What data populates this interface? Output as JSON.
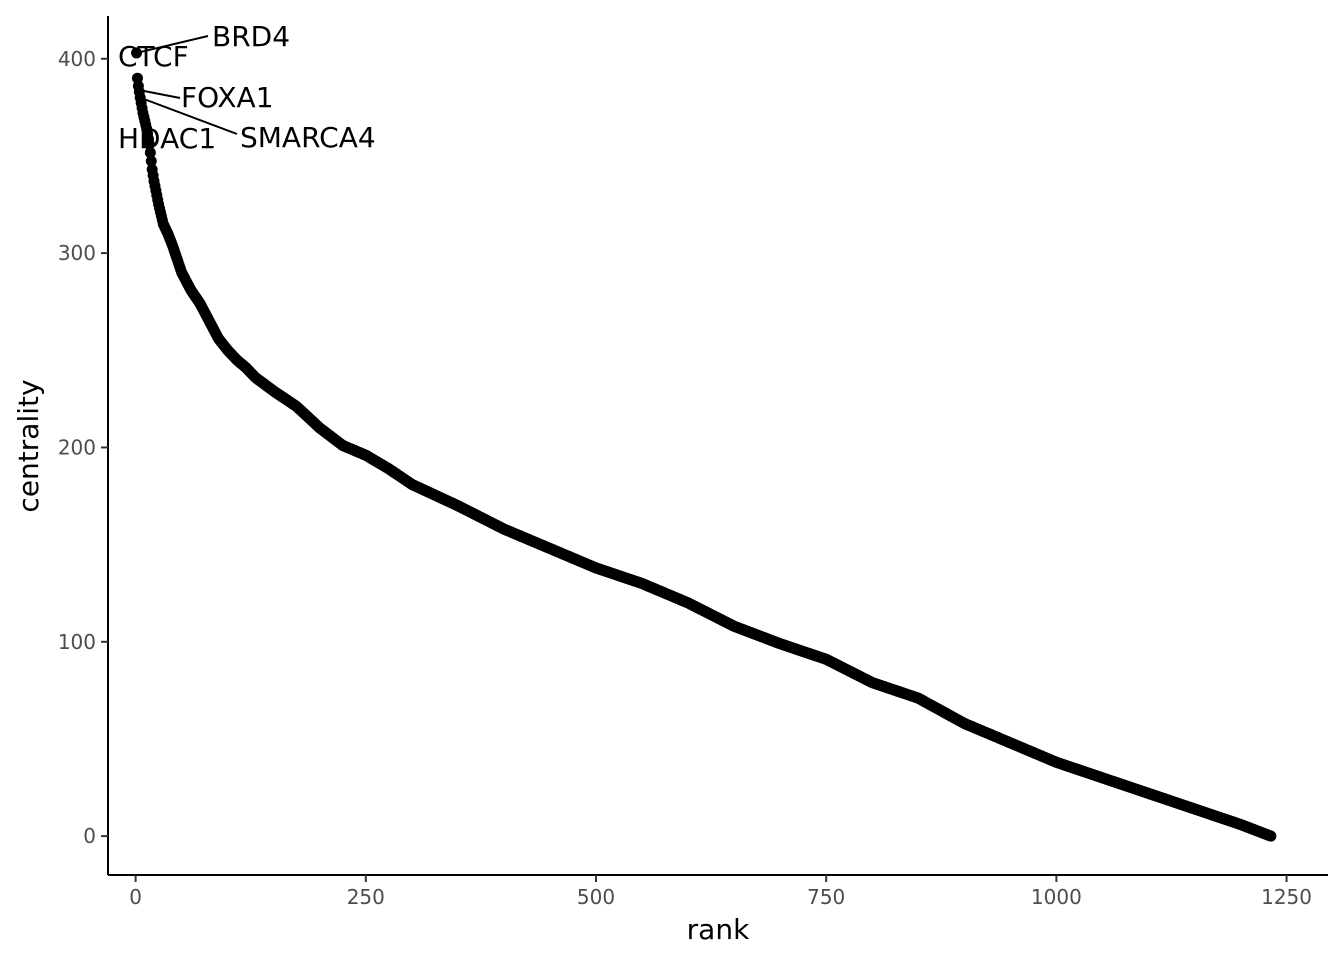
{
  "chart_data": {
    "type": "scatter",
    "xlabel": "rank",
    "ylabel": "centrality",
    "xlim": [
      -30,
      1295
    ],
    "ylim": [
      -20,
      422
    ],
    "x_ticks": [
      0,
      250,
      500,
      750,
      1000,
      1250
    ],
    "y_ticks": [
      0,
      100,
      200,
      300,
      400
    ],
    "x_tick_labels": [
      "0",
      "250",
      "500",
      "750",
      "1000",
      "1250"
    ],
    "y_tick_labels": [
      "0",
      "100",
      "200",
      "300",
      "400"
    ],
    "grid": false,
    "point_color": "#000000",
    "n_points": 1233,
    "curve_anchors": [
      [
        1,
        403
      ],
      [
        2,
        390
      ],
      [
        3,
        386
      ],
      [
        5,
        380
      ],
      [
        8,
        372
      ],
      [
        10,
        368
      ],
      [
        12,
        364
      ],
      [
        15,
        356
      ],
      [
        18,
        343
      ],
      [
        20,
        337
      ],
      [
        25,
        325
      ],
      [
        30,
        315
      ],
      [
        35,
        310
      ],
      [
        40,
        304
      ],
      [
        50,
        290
      ],
      [
        60,
        281
      ],
      [
        70,
        274
      ],
      [
        80,
        265
      ],
      [
        90,
        256
      ],
      [
        100,
        250
      ],
      [
        110,
        245
      ],
      [
        120,
        241
      ],
      [
        130,
        236
      ],
      [
        150,
        229
      ],
      [
        175,
        221
      ],
      [
        200,
        210
      ],
      [
        225,
        201
      ],
      [
        250,
        196
      ],
      [
        275,
        189
      ],
      [
        300,
        181
      ],
      [
        350,
        170
      ],
      [
        400,
        158
      ],
      [
        450,
        148
      ],
      [
        500,
        138
      ],
      [
        550,
        130
      ],
      [
        600,
        120
      ],
      [
        650,
        108
      ],
      [
        700,
        99
      ],
      [
        750,
        91
      ],
      [
        800,
        79
      ],
      [
        850,
        71
      ],
      [
        900,
        58
      ],
      [
        950,
        48
      ],
      [
        1000,
        38
      ],
      [
        1050,
        30
      ],
      [
        1100,
        22
      ],
      [
        1150,
        14
      ],
      [
        1200,
        6
      ],
      [
        1233,
        0
      ]
    ],
    "labels": [
      {
        "text": "BRD4",
        "rank": 1,
        "centrality": 403
      },
      {
        "text": "CTCF",
        "rank": 2,
        "centrality": 398
      },
      {
        "text": "FOXA1",
        "rank": 3,
        "centrality": 384
      },
      {
        "text": "SMARCA4",
        "rank": 5,
        "centrality": 380
      },
      {
        "text": "HDAC1",
        "rank": 9,
        "centrality": 364
      }
    ]
  }
}
